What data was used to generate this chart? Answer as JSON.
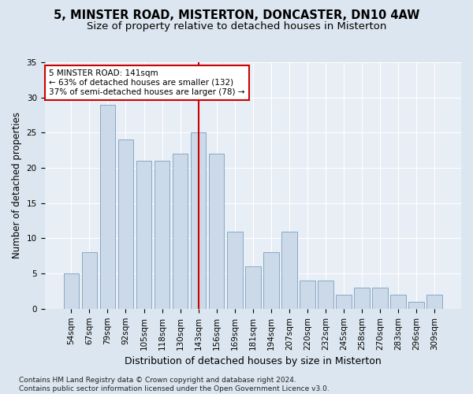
{
  "title1": "5, MINSTER ROAD, MISTERTON, DONCASTER, DN10 4AW",
  "title2": "Size of property relative to detached houses in Misterton",
  "xlabel": "Distribution of detached houses by size in Misterton",
  "ylabel": "Number of detached properties",
  "categories": [
    "54sqm",
    "67sqm",
    "79sqm",
    "92sqm",
    "105sqm",
    "118sqm",
    "130sqm",
    "143sqm",
    "156sqm",
    "169sqm",
    "181sqm",
    "194sqm",
    "207sqm",
    "220sqm",
    "232sqm",
    "245sqm",
    "258sqm",
    "270sqm",
    "283sqm",
    "296sqm",
    "309sqm"
  ],
  "values": [
    5,
    8,
    29,
    24,
    21,
    21,
    22,
    25,
    22,
    11,
    6,
    8,
    11,
    4,
    4,
    2,
    3,
    3,
    2,
    1,
    2
  ],
  "bar_color": "#ccd9e8",
  "bar_edge_color": "#7a9fc0",
  "vline_index": 7,
  "vline_color": "#cc0000",
  "annotation_text": "5 MINSTER ROAD: 141sqm\n← 63% of detached houses are smaller (132)\n37% of semi-detached houses are larger (78) →",
  "annotation_box_facecolor": "#ffffff",
  "annotation_box_edgecolor": "#cc0000",
  "ylim": [
    0,
    35
  ],
  "yticks": [
    0,
    5,
    10,
    15,
    20,
    25,
    30,
    35
  ],
  "bg_color": "#e8eef5",
  "fig_bg_color": "#dce6f0",
  "title1_fontsize": 10.5,
  "title2_fontsize": 9.5,
  "xlabel_fontsize": 9,
  "ylabel_fontsize": 8.5,
  "tick_fontsize": 7.5,
  "annot_fontsize": 7.5,
  "footer_fontsize": 6.5,
  "footer": "Contains HM Land Registry data © Crown copyright and database right 2024.\nContains public sector information licensed under the Open Government Licence v3.0."
}
